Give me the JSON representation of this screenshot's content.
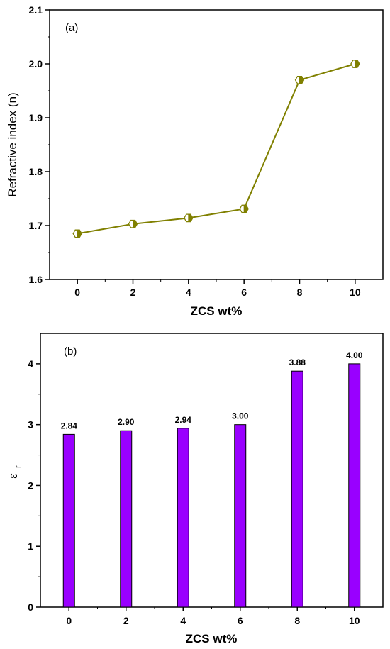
{
  "chart_data": [
    {
      "type": "line",
      "panel_label": "(a)",
      "xlabel": "ZCS wt%",
      "ylabel": "Refractive index (n)",
      "x": [
        0,
        2,
        4,
        6,
        8,
        10
      ],
      "values": [
        1.685,
        1.703,
        1.714,
        1.731,
        1.97,
        2.0
      ],
      "xlim": [
        -1,
        11
      ],
      "ylim": [
        1.6,
        2.1
      ],
      "xticks": [
        "0",
        "2",
        "4",
        "6",
        "8",
        "10"
      ],
      "yticks": [
        "1.6",
        "1.7",
        "1.8",
        "1.9",
        "2.0",
        "2.1"
      ],
      "color": "#808000",
      "marker": "half-filled-hexagon",
      "grid": false
    },
    {
      "type": "bar",
      "panel_label": "(b)",
      "xlabel": "ZCS wt%",
      "ylabel_main": "ε",
      "ylabel_sub": "r",
      "categories": [
        "0",
        "2",
        "4",
        "6",
        "8",
        "10"
      ],
      "x": [
        0,
        2,
        4,
        6,
        8,
        10
      ],
      "values": [
        2.84,
        2.9,
        2.94,
        3.0,
        3.88,
        4.0
      ],
      "data_labels": [
        "2.84",
        "2.90",
        "2.94",
        "3.00",
        "3.88",
        "4.00"
      ],
      "xlim": [
        -1,
        11
      ],
      "ylim": [
        0,
        4.5
      ],
      "yticks": [
        "0",
        "1",
        "2",
        "3",
        "4"
      ],
      "color": "#9900ff",
      "grid": false
    }
  ]
}
